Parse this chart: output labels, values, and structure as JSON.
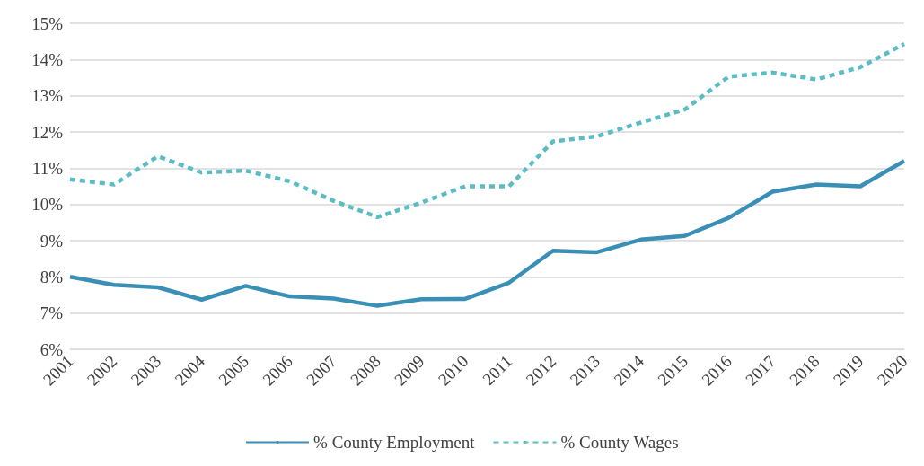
{
  "chart_data": {
    "type": "line",
    "categories": [
      "2001",
      "2002",
      "2003",
      "2004",
      "2005",
      "2006",
      "2007",
      "2008",
      "2009",
      "2010",
      "2011",
      "2012",
      "2013",
      "2014",
      "2015",
      "2016",
      "2017",
      "2018",
      "2019",
      "2020"
    ],
    "series": [
      {
        "name": "% County Employment",
        "color": "#3a8fb7",
        "line_style": "solid",
        "values": [
          8.0,
          7.78,
          7.71,
          7.37,
          7.75,
          7.46,
          7.4,
          7.2,
          7.38,
          7.39,
          7.84,
          8.72,
          8.68,
          9.03,
          9.13,
          9.63,
          10.35,
          10.55,
          10.5,
          11.2
        ]
      },
      {
        "name": "% County Wages",
        "color": "#5bbcc4",
        "line_style": "dashed",
        "values": [
          10.69,
          10.55,
          11.33,
          10.88,
          10.93,
          10.64,
          10.1,
          9.65,
          10.05,
          10.5,
          10.5,
          11.74,
          11.88,
          12.26,
          12.62,
          13.53,
          13.64,
          13.45,
          13.79,
          14.43
        ]
      }
    ],
    "ylim": [
      6,
      15
    ],
    "yticks": [
      {
        "value": 6,
        "label": "6%"
      },
      {
        "value": 7,
        "label": "7%"
      },
      {
        "value": 8,
        "label": "8%"
      },
      {
        "value": 9,
        "label": "9%"
      },
      {
        "value": 10,
        "label": "10%"
      },
      {
        "value": 11,
        "label": "11%"
      },
      {
        "value": 12,
        "label": "12%"
      },
      {
        "value": 13,
        "label": "13%"
      },
      {
        "value": 14,
        "label": "14%"
      },
      {
        "value": 15,
        "label": "15%"
      }
    ],
    "grid": "y",
    "legend": "bottom",
    "marker": "none"
  }
}
